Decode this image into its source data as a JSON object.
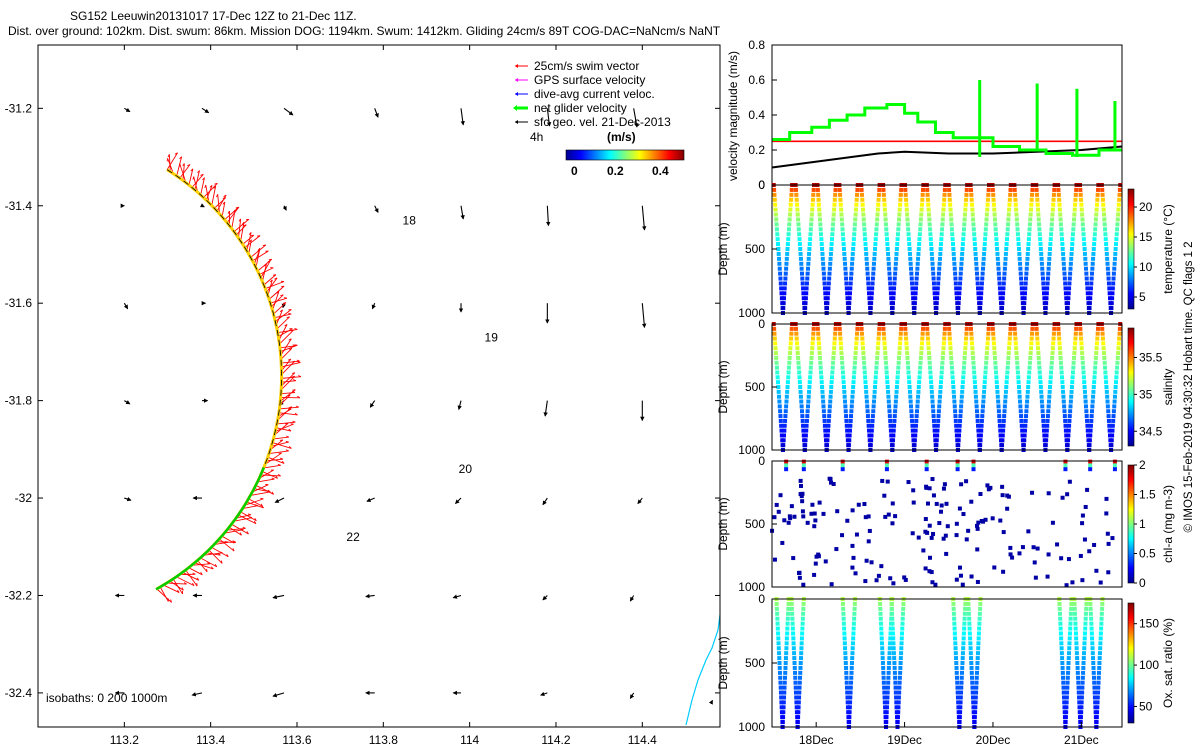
{
  "header": {
    "line1": "SG152 Leeuwin20131017 17-Dec 12Z to 21-Dec 11Z.",
    "line2": "Dist. over ground: 102km. Dist. swum: 86km. Mission DOG: 1194km. Swum: 1412km. Gliding 24cm/s 89T COG-DAC=NaNcm/s NaNT"
  },
  "side_credit": "© IMOS 15-Feb-2019 04:30:32 Hobart time. QC flags 1  2",
  "colors": {
    "swim_vector": "#ff0000",
    "gps_velocity": "#ff00ff",
    "dive_avg": "#0000ff",
    "net_velocity": "#00ff00",
    "sfc_geo": "#000000",
    "track": "#ffd000",
    "coast": "#00ccff"
  },
  "chart_data": [
    {
      "type": "map",
      "xlim": [
        113.0,
        114.58
      ],
      "ylim": [
        -32.47,
        -31.07
      ],
      "x_ticks": [
        113.2,
        113.4,
        113.6,
        113.8,
        114,
        114.2,
        114.4
      ],
      "x_tick_labels": [
        "113.2",
        "113.4",
        "113.6",
        "113.8",
        "114",
        "114.2",
        "114.4"
      ],
      "y_ticks": [
        -31.2,
        -31.4,
        -31.6,
        -31.8,
        -32,
        -32.2,
        -32.4
      ],
      "y_tick_labels": [
        "-31.2",
        "-31.4",
        "-31.6",
        "-31.8",
        "-32",
        "-32.2",
        "-32.4"
      ],
      "legend": {
        "position": "top-right",
        "entries": [
          "25cm/s swim vector",
          "GPS surface velocity",
          "dive-avg current veloc.",
          "net glider velocity",
          "sfc geo. vel. 21-Dec-2013"
        ],
        "duration_label": "4h",
        "colorbar_title": "(m/s)",
        "colorbar_range": [
          0,
          0.5
        ],
        "colorbar_ticks": [
          "0",
          "0.2",
          "0.4"
        ]
      },
      "isobath_label": "isobaths: 0  200  1000m",
      "track_center": [
        113.0,
        -31.75
      ],
      "track_radius_deg": 0.5,
      "track_angle_range": [
        58,
        -61
      ],
      "day_markers": [
        {
          "label": "18",
          "lon": 113.86,
          "lat": -31.43
        },
        {
          "label": "19",
          "lon": 114.05,
          "lat": -31.67
        },
        {
          "label": "20",
          "lon": 113.99,
          "lat": -31.94
        },
        {
          "label": "22",
          "lon": 113.73,
          "lat": -32.08
        }
      ],
      "geo_vectors": [
        {
          "lon": 113.2,
          "lat": -31.2,
          "u": 0.05,
          "v": -0.03
        },
        {
          "lon": 113.38,
          "lat": -31.2,
          "u": 0.06,
          "v": -0.04
        },
        {
          "lon": 113.57,
          "lat": -31.2,
          "u": 0.08,
          "v": -0.06
        },
        {
          "lon": 113.78,
          "lat": -31.2,
          "u": 0.03,
          "v": -0.08
        },
        {
          "lon": 113.98,
          "lat": -31.2,
          "u": 0.02,
          "v": -0.15
        },
        {
          "lon": 114.18,
          "lat": -31.2,
          "u": 0.02,
          "v": -0.16
        },
        {
          "lon": 114.38,
          "lat": -31.2,
          "u": 0.03,
          "v": -0.17
        },
        {
          "lon": 113.2,
          "lat": -31.4,
          "u": 0.0,
          "v": 0.0
        },
        {
          "lon": 113.38,
          "lat": -31.4,
          "u": 0.02,
          "v": -0.01
        },
        {
          "lon": 113.57,
          "lat": -31.4,
          "u": 0.02,
          "v": -0.04
        },
        {
          "lon": 113.78,
          "lat": -31.4,
          "u": 0.03,
          "v": -0.06
        },
        {
          "lon": 113.98,
          "lat": -31.4,
          "u": 0.02,
          "v": -0.12
        },
        {
          "lon": 114.18,
          "lat": -31.4,
          "u": 0.01,
          "v": -0.18
        },
        {
          "lon": 114.4,
          "lat": -31.4,
          "u": 0.02,
          "v": -0.22
        },
        {
          "lon": 113.2,
          "lat": -31.6,
          "u": 0.03,
          "v": -0.05
        },
        {
          "lon": 113.38,
          "lat": -31.6,
          "u": 0.03,
          "v": 0.0
        },
        {
          "lon": 113.57,
          "lat": -31.6,
          "u": -0.01,
          "v": -0.04
        },
        {
          "lon": 113.78,
          "lat": -31.6,
          "u": -0.02,
          "v": -0.05
        },
        {
          "lon": 113.98,
          "lat": -31.6,
          "u": 0.0,
          "v": -0.08
        },
        {
          "lon": 114.18,
          "lat": -31.6,
          "u": 0.0,
          "v": -0.18
        },
        {
          "lon": 114.4,
          "lat": -31.6,
          "u": 0.02,
          "v": -0.22
        },
        {
          "lon": 113.2,
          "lat": -31.8,
          "u": 0.05,
          "v": -0.03
        },
        {
          "lon": 113.38,
          "lat": -31.8,
          "u": 0.05,
          "v": 0.0
        },
        {
          "lon": 113.57,
          "lat": -31.8,
          "u": -0.04,
          "v": -0.04
        },
        {
          "lon": 113.78,
          "lat": -31.8,
          "u": -0.04,
          "v": -0.06
        },
        {
          "lon": 113.98,
          "lat": -31.8,
          "u": -0.02,
          "v": -0.08
        },
        {
          "lon": 114.18,
          "lat": -31.8,
          "u": -0.02,
          "v": -0.14
        },
        {
          "lon": 114.4,
          "lat": -31.8,
          "u": 0.0,
          "v": -0.18
        },
        {
          "lon": 113.2,
          "lat": -32.0,
          "u": 0.06,
          "v": -0.02
        },
        {
          "lon": 113.38,
          "lat": -32.0,
          "u": -0.08,
          "v": 0.0
        },
        {
          "lon": 113.57,
          "lat": -32.0,
          "u": -0.08,
          "v": -0.04
        },
        {
          "lon": 113.78,
          "lat": -32.0,
          "u": -0.07,
          "v": -0.03
        },
        {
          "lon": 113.98,
          "lat": -32.0,
          "u": -0.05,
          "v": -0.05
        },
        {
          "lon": 114.18,
          "lat": -32.0,
          "u": -0.04,
          "v": -0.06
        },
        {
          "lon": 114.4,
          "lat": -32.0,
          "u": -0.04,
          "v": -0.05
        },
        {
          "lon": 113.2,
          "lat": -32.2,
          "u": -0.08,
          "v": 0.0
        },
        {
          "lon": 113.38,
          "lat": -32.2,
          "u": -0.08,
          "v": 0.0
        },
        {
          "lon": 113.57,
          "lat": -32.2,
          "u": -0.1,
          "v": -0.02
        },
        {
          "lon": 113.78,
          "lat": -32.2,
          "u": -0.08,
          "v": -0.01
        },
        {
          "lon": 113.98,
          "lat": -32.2,
          "u": -0.07,
          "v": -0.02
        },
        {
          "lon": 114.18,
          "lat": -32.2,
          "u": -0.04,
          "v": -0.04
        },
        {
          "lon": 114.38,
          "lat": -32.2,
          "u": -0.03,
          "v": -0.05
        },
        {
          "lon": 113.2,
          "lat": -32.4,
          "u": -0.08,
          "v": 0.0
        },
        {
          "lon": 113.38,
          "lat": -32.4,
          "u": -0.09,
          "v": -0.02
        },
        {
          "lon": 113.57,
          "lat": -32.4,
          "u": -0.1,
          "v": -0.03
        },
        {
          "lon": 113.78,
          "lat": -32.4,
          "u": -0.08,
          "v": 0.0
        },
        {
          "lon": 113.98,
          "lat": -32.4,
          "u": -0.07,
          "v": 0.0
        },
        {
          "lon": 114.18,
          "lat": -32.4,
          "u": -0.06,
          "v": -0.02
        },
        {
          "lon": 114.38,
          "lat": -32.4,
          "u": -0.03,
          "v": -0.05
        },
        {
          "lon": 114.56,
          "lat": -32.42,
          "u": 0.01,
          "v": 0.02
        }
      ]
    },
    {
      "type": "line",
      "xlim": [
        17.5,
        21.46
      ],
      "ylim": [
        0,
        0.8
      ],
      "y_ticks": [
        "0",
        "0.2",
        "0.4",
        "0.6",
        "0.8"
      ],
      "ylabel": "velocity magnitude (m/s)",
      "series": [
        {
          "color": "#ff0000",
          "x": [
            17.5,
            21.46
          ],
          "y": [
            0.25,
            0.25
          ]
        },
        {
          "color": "#000000",
          "x": [
            17.5,
            17.8,
            18.1,
            18.4,
            18.7,
            19.0,
            19.5,
            20.0,
            20.5,
            21.0,
            21.46
          ],
          "y": [
            0.1,
            0.12,
            0.14,
            0.16,
            0.18,
            0.19,
            0.18,
            0.18,
            0.19,
            0.2,
            0.22
          ]
        },
        {
          "color": "#00ff00",
          "x": [
            17.5,
            17.7,
            17.7,
            17.95,
            17.95,
            18.15,
            18.15,
            18.35,
            18.35,
            18.55,
            18.55,
            18.8,
            18.8,
            19.0,
            19.0,
            19.15,
            19.15,
            19.35,
            19.35,
            19.55,
            19.55,
            19.75,
            19.75,
            20.0,
            20.0,
            20.3,
            20.3,
            20.6,
            20.6,
            20.9,
            20.9,
            21.2,
            21.2,
            21.46
          ],
          "y": [
            0.26,
            0.26,
            0.3,
            0.3,
            0.33,
            0.33,
            0.37,
            0.37,
            0.4,
            0.4,
            0.44,
            0.44,
            0.46,
            0.46,
            0.41,
            0.41,
            0.36,
            0.36,
            0.3,
            0.3,
            0.27,
            0.27,
            0.27,
            0.27,
            0.22,
            0.22,
            0.2,
            0.2,
            0.18,
            0.18,
            0.17,
            0.17,
            0.2,
            0.2
          ]
        }
      ]
    },
    {
      "type": "scatter",
      "ylabel": "Depth (m)",
      "colorbar_label": "temperature (°C)",
      "colorbar_ticks": [
        "5",
        "10",
        "15",
        "20"
      ],
      "colorbar_values": [
        5,
        10,
        15,
        20
      ],
      "colorbar_range": [
        3,
        23
      ],
      "surface_value": 22,
      "bottom_value": 4,
      "dives": 16,
      "max_depth": 1000,
      "y_ticks": [
        "0",
        "500",
        "1000"
      ]
    },
    {
      "type": "scatter",
      "ylabel": "Depth (m)",
      "colorbar_label": "salinity",
      "colorbar_ticks": [
        "34.5",
        "35",
        "35.5"
      ],
      "colorbar_values": [
        34.5,
        35,
        35.5
      ],
      "colorbar_range": [
        34.3,
        35.9
      ],
      "surface_value": 35.8,
      "bottom_value": 34.4,
      "dives": 16,
      "max_depth": 1000,
      "y_ticks": [
        "0",
        "500",
        "1000"
      ]
    },
    {
      "type": "scatter",
      "ylabel": "Depth (m)",
      "colorbar_label": "chl-a (mg m-3)",
      "colorbar_ticks": [
        "0",
        "0.5",
        "1",
        "1.5",
        "2"
      ],
      "colorbar_values": [
        0,
        0.5,
        1,
        1.5,
        2
      ],
      "colorbar_range": [
        0,
        2
      ],
      "dives": 16,
      "max_depth": 1000,
      "y_ticks": [
        "0",
        "500",
        "1000"
      ]
    },
    {
      "type": "scatter",
      "ylabel": "Depth (m)",
      "colorbar_label": "Ox. sat. ratio (%)",
      "colorbar_ticks": [
        "50",
        "100",
        "150"
      ],
      "colorbar_values": [
        50,
        100,
        150
      ],
      "colorbar_range": [
        30,
        175
      ],
      "surface_value": 110,
      "bottom_value": 45,
      "dive_groups": [
        [
          17.55,
          17.72
        ],
        [
          18.3
        ],
        [
          18.72,
          18.85
        ],
        [
          19.55,
          19.72
        ],
        [
          20.75,
          20.92,
          21.1
        ]
      ],
      "max_depth": 1000,
      "y_ticks": [
        "0",
        "500",
        "1000"
      ],
      "x_ticks": [
        18,
        19,
        20,
        21
      ],
      "x_tick_labels": [
        "18Dec",
        "19Dec",
        "20Dec",
        "21Dec"
      ]
    }
  ]
}
